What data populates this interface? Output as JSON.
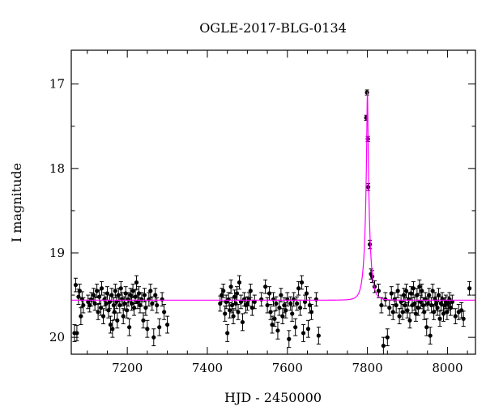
{
  "chart_data": {
    "type": "scatter",
    "title": "OGLE-2017-BLG-0134",
    "xlabel": "HJD - 2450000",
    "ylabel": "I magnitude",
    "xlim": [
      7060,
      8070
    ],
    "ylim": [
      20.2,
      16.6
    ],
    "y_inverted": true,
    "x_ticks": [
      7200,
      7400,
      7600,
      7800,
      8000
    ],
    "y_ticks": [
      17,
      18,
      19,
      20
    ],
    "x_tick_labels": [
      "7200",
      "7400",
      "7600",
      "7800",
      "8000"
    ],
    "y_tick_labels": [
      "17",
      "18",
      "19",
      "20"
    ],
    "grid": false,
    "colors": {
      "points": "#000000",
      "model": "#ff00ff"
    },
    "model": {
      "baseline": 19.56,
      "peak": 17.09,
      "t0": 7800,
      "tE": 12
    },
    "series": [
      {
        "points": [
          [
            7068,
            19.95,
            0.1
          ],
          [
            7071,
            19.38,
            0.08
          ],
          [
            7074,
            19.95,
            0.09
          ],
          [
            7078,
            19.52,
            0.09
          ],
          [
            7081,
            19.45,
            0.08
          ],
          [
            7084,
            19.75,
            0.1
          ],
          [
            7087,
            19.55,
            0.09
          ],
          [
            7090,
            19.62,
            0.09
          ],
          [
            7102,
            19.58,
            0.08
          ],
          [
            7106,
            19.62,
            0.08
          ],
          [
            7110,
            19.55,
            0.08
          ],
          [
            7116,
            19.5,
            0.08
          ],
          [
            7119,
            19.6,
            0.08
          ],
          [
            7124,
            19.45,
            0.08
          ],
          [
            7127,
            19.7,
            0.09
          ],
          [
            7130,
            19.52,
            0.08
          ],
          [
            7134,
            19.65,
            0.09
          ],
          [
            7136,
            19.42,
            0.08
          ],
          [
            7140,
            19.75,
            0.09
          ],
          [
            7143,
            19.55,
            0.08
          ],
          [
            7147,
            19.6,
            0.08
          ],
          [
            7150,
            19.48,
            0.08
          ],
          [
            7153,
            19.68,
            0.09
          ],
          [
            7156,
            19.58,
            0.08
          ],
          [
            7158,
            19.85,
            0.1
          ],
          [
            7161,
            19.5,
            0.08
          ],
          [
            7163,
            19.9,
            0.1
          ],
          [
            7166,
            19.62,
            0.09
          ],
          [
            7168,
            19.7,
            0.09
          ],
          [
            7170,
            19.45,
            0.08
          ],
          [
            7173,
            19.58,
            0.08
          ],
          [
            7175,
            19.8,
            0.09
          ],
          [
            7178,
            19.5,
            0.08
          ],
          [
            7181,
            19.62,
            0.09
          ],
          [
            7184,
            19.42,
            0.08
          ],
          [
            7187,
            19.55,
            0.08
          ],
          [
            7190,
            19.75,
            0.09
          ],
          [
            7193,
            19.6,
            0.08
          ],
          [
            7196,
            19.48,
            0.08
          ],
          [
            7199,
            19.68,
            0.09
          ],
          [
            7202,
            19.55,
            0.08
          ],
          [
            7205,
            19.88,
            0.1
          ],
          [
            7208,
            19.5,
            0.08
          ],
          [
            7211,
            19.6,
            0.08
          ],
          [
            7214,
            19.45,
            0.08
          ],
          [
            7217,
            19.65,
            0.09
          ],
          [
            7220,
            19.52,
            0.08
          ],
          [
            7223,
            19.35,
            0.08
          ],
          [
            7226,
            19.58,
            0.08
          ],
          [
            7229,
            19.48,
            0.08
          ],
          [
            7232,
            19.62,
            0.09
          ],
          [
            7236,
            19.55,
            0.08
          ],
          [
            7240,
            19.8,
            0.09
          ],
          [
            7243,
            19.5,
            0.08
          ],
          [
            7246,
            19.65,
            0.09
          ],
          [
            7250,
            19.9,
            0.1
          ],
          [
            7254,
            19.55,
            0.08
          ],
          [
            7258,
            19.45,
            0.08
          ],
          [
            7262,
            19.6,
            0.08
          ],
          [
            7266,
            20.0,
            0.1
          ],
          [
            7270,
            19.5,
            0.08
          ],
          [
            7274,
            19.62,
            0.09
          ],
          [
            7280,
            19.88,
            0.1
          ],
          [
            7287,
            19.55,
            0.08
          ],
          [
            7292,
            19.7,
            0.09
          ],
          [
            7300,
            19.85,
            0.1
          ],
          [
            7432,
            19.6,
            0.09
          ],
          [
            7436,
            19.5,
            0.08
          ],
          [
            7440,
            19.45,
            0.08
          ],
          [
            7444,
            19.72,
            0.09
          ],
          [
            7447,
            19.58,
            0.08
          ],
          [
            7450,
            19.95,
            0.1
          ],
          [
            7453,
            19.55,
            0.08
          ],
          [
            7456,
            19.68,
            0.09
          ],
          [
            7459,
            19.4,
            0.08
          ],
          [
            7462,
            19.62,
            0.09
          ],
          [
            7465,
            19.75,
            0.09
          ],
          [
            7468,
            19.52,
            0.08
          ],
          [
            7471,
            19.6,
            0.08
          ],
          [
            7474,
            19.48,
            0.08
          ],
          [
            7477,
            19.7,
            0.09
          ],
          [
            7480,
            19.35,
            0.08
          ],
          [
            7484,
            19.58,
            0.08
          ],
          [
            7488,
            19.82,
            0.1
          ],
          [
            7492,
            19.55,
            0.08
          ],
          [
            7496,
            19.62,
            0.09
          ],
          [
            7500,
            19.6,
            0.08
          ],
          [
            7504,
            19.55,
            0.08
          ],
          [
            7508,
            19.45,
            0.08
          ],
          [
            7512,
            19.65,
            0.09
          ],
          [
            7518,
            19.58,
            0.08
          ],
          [
            7535,
            19.55,
            0.08
          ],
          [
            7545,
            19.4,
            0.08
          ],
          [
            7550,
            19.62,
            0.09
          ],
          [
            7555,
            19.48,
            0.08
          ],
          [
            7558,
            19.7,
            0.09
          ],
          [
            7562,
            19.85,
            0.1
          ],
          [
            7565,
            19.55,
            0.08
          ],
          [
            7568,
            19.78,
            0.09
          ],
          [
            7572,
            19.6,
            0.08
          ],
          [
            7576,
            19.92,
            0.1
          ],
          [
            7580,
            19.65,
            0.09
          ],
          [
            7584,
            19.5,
            0.08
          ],
          [
            7588,
            19.75,
            0.09
          ],
          [
            7592,
            19.62,
            0.09
          ],
          [
            7596,
            19.68,
            0.09
          ],
          [
            7600,
            19.55,
            0.08
          ],
          [
            7604,
            20.02,
            0.1
          ],
          [
            7608,
            19.6,
            0.08
          ],
          [
            7612,
            19.72,
            0.09
          ],
          [
            7616,
            19.55,
            0.08
          ],
          [
            7620,
            19.88,
            0.1
          ],
          [
            7624,
            19.6,
            0.08
          ],
          [
            7628,
            19.42,
            0.08
          ],
          [
            7632,
            19.65,
            0.09
          ],
          [
            7636,
            19.35,
            0.08
          ],
          [
            7640,
            19.95,
            0.1
          ],
          [
            7644,
            19.58,
            0.08
          ],
          [
            7648,
            19.48,
            0.08
          ],
          [
            7652,
            19.9,
            0.1
          ],
          [
            7656,
            19.62,
            0.09
          ],
          [
            7660,
            19.7,
            0.09
          ],
          [
            7672,
            19.55,
            0.08
          ],
          [
            7678,
            19.98,
            0.1
          ],
          [
            7797,
            17.4,
            0.03
          ],
          [
            7799,
            17.1,
            0.03
          ],
          [
            7801,
            17.65,
            0.03
          ],
          [
            7802,
            18.22,
            0.04
          ],
          [
            7806,
            18.9,
            0.05
          ],
          [
            7809,
            19.25,
            0.06
          ],
          [
            7812,
            19.28,
            0.07
          ],
          [
            7818,
            19.4,
            0.07
          ],
          [
            7828,
            19.45,
            0.08
          ],
          [
            7835,
            19.62,
            0.09
          ],
          [
            7840,
            20.1,
            0.1
          ],
          [
            7845,
            19.55,
            0.08
          ],
          [
            7850,
            20.0,
            0.1
          ],
          [
            7855,
            19.65,
            0.09
          ],
          [
            7860,
            19.48,
            0.08
          ],
          [
            7864,
            19.7,
            0.09
          ],
          [
            7868,
            19.55,
            0.08
          ],
          [
            7872,
            19.62,
            0.09
          ],
          [
            7876,
            19.45,
            0.08
          ],
          [
            7880,
            19.75,
            0.09
          ],
          [
            7884,
            19.58,
            0.08
          ],
          [
            7888,
            19.7,
            0.09
          ],
          [
            7891,
            19.5,
            0.08
          ],
          [
            7894,
            19.62,
            0.09
          ],
          [
            7897,
            19.45,
            0.08
          ],
          [
            7900,
            19.68,
            0.09
          ],
          [
            7903,
            19.55,
            0.08
          ],
          [
            7906,
            19.8,
            0.09
          ],
          [
            7909,
            19.48,
            0.08
          ],
          [
            7912,
            19.62,
            0.09
          ],
          [
            7915,
            19.42,
            0.08
          ],
          [
            7918,
            19.6,
            0.08
          ],
          [
            7921,
            19.72,
            0.09
          ],
          [
            7924,
            19.5,
            0.08
          ],
          [
            7927,
            19.65,
            0.09
          ],
          [
            7930,
            19.4,
            0.08
          ],
          [
            7933,
            19.58,
            0.08
          ],
          [
            7936,
            19.45,
            0.08
          ],
          [
            7939,
            19.62,
            0.09
          ],
          [
            7942,
            19.7,
            0.09
          ],
          [
            7945,
            19.55,
            0.08
          ],
          [
            7948,
            19.88,
            0.1
          ],
          [
            7951,
            19.6,
            0.08
          ],
          [
            7954,
            19.5,
            0.08
          ],
          [
            7957,
            19.98,
            0.1
          ],
          [
            7960,
            19.62,
            0.09
          ],
          [
            7963,
            19.45,
            0.08
          ],
          [
            7966,
            19.7,
            0.09
          ],
          [
            7969,
            19.55,
            0.08
          ],
          [
            7972,
            19.6,
            0.08
          ],
          [
            7975,
            19.65,
            0.09
          ],
          [
            7978,
            19.5,
            0.08
          ],
          [
            7981,
            19.78,
            0.09
          ],
          [
            7984,
            19.6,
            0.08
          ],
          [
            7987,
            19.55,
            0.08
          ],
          [
            7990,
            19.72,
            0.09
          ],
          [
            7993,
            19.62,
            0.09
          ],
          [
            7996,
            19.58,
            0.08
          ],
          [
            7999,
            19.7,
            0.09
          ],
          [
            8002,
            19.6,
            0.08
          ],
          [
            8005,
            19.55,
            0.08
          ],
          [
            8008,
            19.65,
            0.09
          ],
          [
            8012,
            19.58,
            0.08
          ],
          [
            8020,
            19.75,
            0.09
          ],
          [
            8028,
            19.7,
            0.09
          ],
          [
            8035,
            19.68,
            0.09
          ],
          [
            8040,
            19.78,
            0.09
          ],
          [
            8055,
            19.42,
            0.08
          ]
        ]
      }
    ]
  }
}
